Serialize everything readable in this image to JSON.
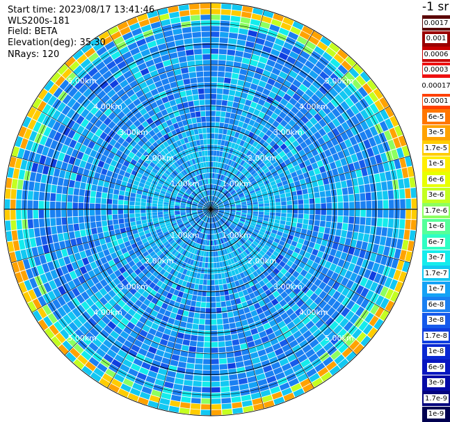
{
  "header": {
    "start_time": "Start time: 2023/08/17 13:41:46",
    "device": "WLS200s-181",
    "field": "Field: BETA",
    "elevation": "Elevation(deg): 35.30",
    "nrays": "NRays: 120"
  },
  "legend": {
    "title": "-1 sr",
    "entries": [
      {
        "label": "0.0017",
        "color": "#5a0000"
      },
      {
        "label": "0.001",
        "color": "#9a0000"
      },
      {
        "label": "0.0006",
        "color": "#c80000"
      },
      {
        "label": "0.0003",
        "color": "#ee1010"
      },
      {
        "label": "0.00017",
        "color": "#ffffff"
      },
      {
        "label": "0.0001",
        "color": "#ff4000"
      },
      {
        "label": "6e-5",
        "color": "#ff7700"
      },
      {
        "label": "3e-5",
        "color": "#ffa200"
      },
      {
        "label": "1.7e-5",
        "color": "#ffcc00"
      },
      {
        "label": "1e-5",
        "color": "#ffee00"
      },
      {
        "label": "6e-6",
        "color": "#e8ff00"
      },
      {
        "label": "3e-6",
        "color": "#c4ff20"
      },
      {
        "label": "1.7e-6",
        "color": "#8cff60"
      },
      {
        "label": "1e-6",
        "color": "#55ff99"
      },
      {
        "label": "6e-7",
        "color": "#2effc4"
      },
      {
        "label": "3e-7",
        "color": "#14ecec"
      },
      {
        "label": "1.7e-7",
        "color": "#12c8f2"
      },
      {
        "label": "1e-7",
        "color": "#15a2f5"
      },
      {
        "label": "6e-8",
        "color": "#1a80f2"
      },
      {
        "label": "3e-8",
        "color": "#165aeb"
      },
      {
        "label": "1.7e-8",
        "color": "#0f3ee0"
      },
      {
        "label": "1e-8",
        "color": "#0a28d2"
      },
      {
        "label": "6e-9",
        "color": "#0816c0"
      },
      {
        "label": "3e-9",
        "color": "#050aa6"
      },
      {
        "label": "1.7e-9",
        "color": "#03037e"
      },
      {
        "label": "1e-9",
        "color": "#000050"
      }
    ]
  },
  "map": {
    "max_range_km": 5,
    "ring_labels": [
      "1.00km",
      "2.00km",
      "3.00km",
      "4.00km",
      "5.00km"
    ],
    "colors": {
      "background": "#ffffff",
      "grid": "#000000",
      "gate_separator": "#ffffff",
      "ring_label": "#ffffff"
    }
  }
}
